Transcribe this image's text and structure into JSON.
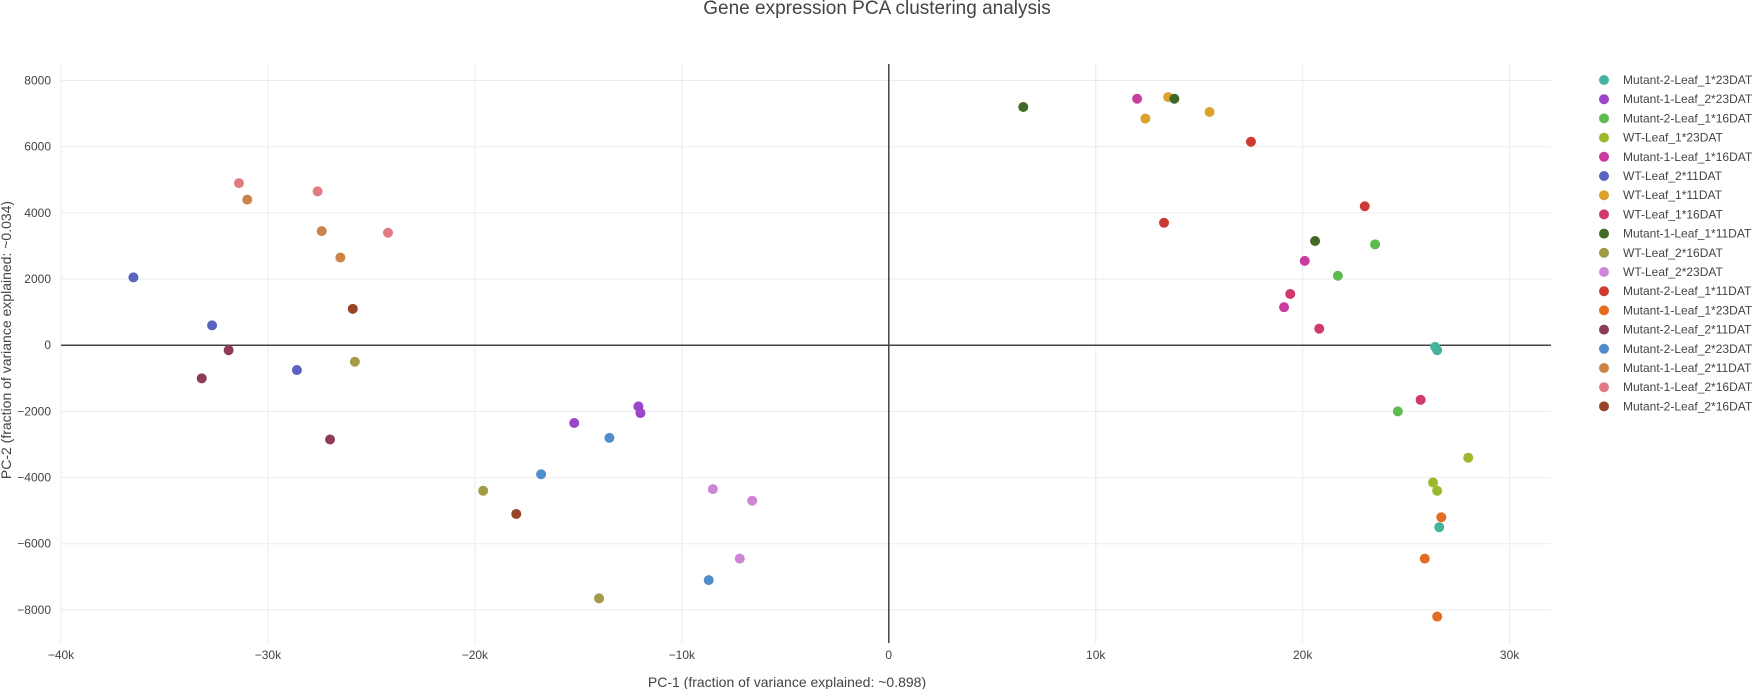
{
  "chart_data": {
    "type": "scatter",
    "title": "Gene expression PCA clustering analysis",
    "xlabel": "PC-1 (fraction of variance explained: ~0.898)",
    "ylabel": "PC-2 (fraction of variance explained: ~0.034)",
    "xlim": [
      -40000,
      32000
    ],
    "ylim": [
      -9000,
      8500
    ],
    "grid": true,
    "legend_position": "right",
    "x_ticks": [
      {
        "value": -40000,
        "label": "−40k"
      },
      {
        "value": -30000,
        "label": "−30k"
      },
      {
        "value": -20000,
        "label": "−20k"
      },
      {
        "value": -10000,
        "label": "−10k"
      },
      {
        "value": 0,
        "label": "0"
      },
      {
        "value": 10000,
        "label": "10k"
      },
      {
        "value": 20000,
        "label": "20k"
      },
      {
        "value": 30000,
        "label": "30k"
      }
    ],
    "y_ticks": [
      {
        "value": -8000,
        "label": "−8000"
      },
      {
        "value": -6000,
        "label": "−6000"
      },
      {
        "value": -4000,
        "label": "−4000"
      },
      {
        "value": -2000,
        "label": "−2000"
      },
      {
        "value": 0,
        "label": "0"
      },
      {
        "value": 2000,
        "label": "2000"
      },
      {
        "value": 4000,
        "label": "4000"
      },
      {
        "value": 6000,
        "label": "6000"
      },
      {
        "value": 8000,
        "label": "8000"
      }
    ],
    "series": [
      {
        "name": "Mutant-2-Leaf_1*23DAT",
        "color": "#45b39d",
        "points": [
          [
            26400,
            -50
          ],
          [
            26500,
            -150
          ],
          [
            26600,
            -5500
          ]
        ]
      },
      {
        "name": "Mutant-1-Leaf_2*23DAT",
        "color": "#9b45c8",
        "points": [
          [
            -15200,
            -2350
          ],
          [
            -12100,
            -1850
          ],
          [
            -12000,
            -2050
          ]
        ]
      },
      {
        "name": "Mutant-2-Leaf_1*16DAT",
        "color": "#5dbb50",
        "points": [
          [
            23500,
            3050
          ],
          [
            21700,
            2100
          ],
          [
            24600,
            -2000
          ]
        ]
      },
      {
        "name": "WT-Leaf_1*23DAT",
        "color": "#9cb82e",
        "points": [
          [
            28000,
            -3400
          ],
          [
            26300,
            -4150
          ],
          [
            26500,
            -4400
          ]
        ]
      },
      {
        "name": "Mutant-1-Leaf_1*16DAT",
        "color": "#c93d9e",
        "points": [
          [
            12000,
            7450
          ],
          [
            20100,
            2550
          ],
          [
            19100,
            1150
          ]
        ]
      },
      {
        "name": "WT-Leaf_2*11DAT",
        "color": "#5a63c0",
        "points": [
          [
            -36500,
            2050
          ],
          [
            -32700,
            600
          ],
          [
            -28600,
            -750
          ]
        ]
      },
      {
        "name": "WT-Leaf_1*11DAT",
        "color": "#dba32c",
        "points": [
          [
            13500,
            7500
          ],
          [
            12400,
            6850
          ],
          [
            15500,
            7050
          ]
        ]
      },
      {
        "name": "WT-Leaf_1*16DAT",
        "color": "#cf3a6a",
        "points": [
          [
            19400,
            1550
          ],
          [
            20800,
            500
          ],
          [
            25700,
            -1650
          ]
        ]
      },
      {
        "name": "Mutant-1-Leaf_1*11DAT",
        "color": "#3e6a23",
        "points": [
          [
            6500,
            7200
          ],
          [
            13800,
            7450
          ],
          [
            20600,
            3150
          ]
        ]
      },
      {
        "name": "WT-Leaf_2*16DAT",
        "color": "#a39c46",
        "points": [
          [
            -25800,
            -500
          ],
          [
            -19600,
            -4400
          ],
          [
            -14000,
            -7650
          ]
        ]
      },
      {
        "name": "WT-Leaf_2*23DAT",
        "color": "#cd86d3",
        "points": [
          [
            -8500,
            -4350
          ],
          [
            -6600,
            -4700
          ],
          [
            -7200,
            -6450
          ]
        ]
      },
      {
        "name": "Mutant-2-Leaf_1*11DAT",
        "color": "#cc3a33",
        "points": [
          [
            17500,
            6150
          ],
          [
            23000,
            4200
          ],
          [
            13300,
            3700
          ]
        ]
      },
      {
        "name": "Mutant-1-Leaf_1*23DAT",
        "color": "#e26d22",
        "points": [
          [
            26700,
            -5200
          ],
          [
            25900,
            -6450
          ],
          [
            26500,
            -8200
          ]
        ]
      },
      {
        "name": "Mutant-2-Leaf_2*11DAT",
        "color": "#8e3b58",
        "points": [
          [
            -33200,
            -1000
          ],
          [
            -31900,
            -150
          ],
          [
            -27000,
            -2850
          ]
        ]
      },
      {
        "name": "Mutant-2-Leaf_2*23DAT",
        "color": "#4f8dcc",
        "points": [
          [
            -13500,
            -2800
          ],
          [
            -16800,
            -3900
          ],
          [
            -8700,
            -7100
          ]
        ]
      },
      {
        "name": "Mutant-1-Leaf_2*11DAT",
        "color": "#cc8448",
        "points": [
          [
            -31000,
            4400
          ],
          [
            -27400,
            3450
          ],
          [
            -26500,
            2650
          ]
        ]
      },
      {
        "name": "Mutant-1-Leaf_2*16DAT",
        "color": "#e27a82",
        "points": [
          [
            -31400,
            4900
          ],
          [
            -27600,
            4650
          ],
          [
            -24200,
            3400
          ]
        ]
      },
      {
        "name": "Mutant-2-Leaf_2*16DAT",
        "color": "#964527",
        "points": [
          [
            -25900,
            1100
          ],
          [
            -18000,
            -5100
          ]
        ]
      }
    ]
  }
}
